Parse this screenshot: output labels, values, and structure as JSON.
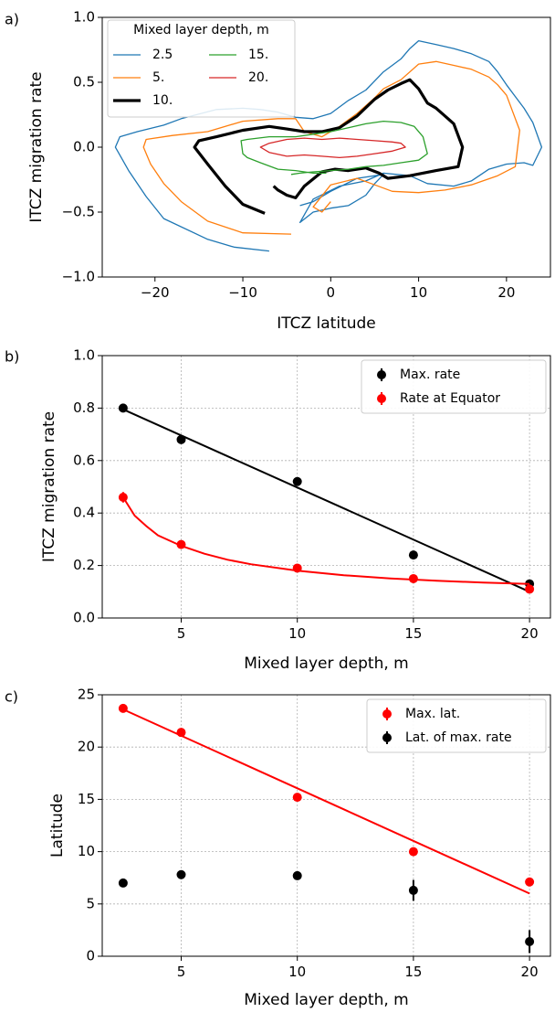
{
  "chart_data": [
    {
      "panel": "a)",
      "type": "line",
      "xlabel": "ITCZ latitude",
      "ylabel": "ITCZ migration rate",
      "xlim": [
        -26,
        25
      ],
      "ylim": [
        -1.0,
        1.0
      ],
      "xticks": [
        -20,
        -10,
        0,
        10,
        20
      ],
      "xtick_labels": [
        "−20",
        "−10",
        "0",
        "10",
        "20"
      ],
      "yticks": [
        -1.0,
        -0.5,
        0.0,
        0.5,
        1.0
      ],
      "ytick_labels": [
        "−1.0",
        "−0.5",
        "0.0",
        "0.5",
        "1.0"
      ],
      "legend": {
        "title": "Mixed layer depth, m",
        "position": "top-left",
        "ncol": 2
      },
      "series": [
        {
          "name": "2.5",
          "color": "#1f77b4",
          "width": 1.3,
          "x": [
            -7,
            -11,
            -14,
            -19,
            -21,
            -23,
            -24.5,
            -24,
            -22,
            -19,
            -17,
            -13,
            -10,
            -8,
            -6,
            -4,
            -2,
            0,
            2,
            4,
            6,
            8,
            9,
            10,
            12,
            14,
            16,
            18,
            19,
            20,
            21,
            22,
            23,
            24,
            23,
            22,
            20,
            18,
            16,
            14,
            11,
            9,
            6,
            4,
            1,
            -2,
            -3.5,
            -2,
            0,
            2,
            4,
            5,
            6,
            3,
            0,
            -2,
            -3.5
          ],
          "y": [
            -0.8,
            -0.77,
            -0.71,
            -0.55,
            -0.38,
            -0.18,
            0.0,
            0.08,
            0.12,
            0.17,
            0.22,
            0.29,
            0.3,
            0.29,
            0.27,
            0.23,
            0.22,
            0.26,
            0.36,
            0.44,
            0.58,
            0.68,
            0.76,
            0.82,
            0.79,
            0.76,
            0.72,
            0.66,
            0.58,
            0.48,
            0.39,
            0.3,
            0.19,
            0.0,
            -0.14,
            -0.12,
            -0.13,
            -0.17,
            -0.26,
            -0.3,
            -0.28,
            -0.22,
            -0.2,
            -0.26,
            -0.3,
            -0.4,
            -0.58,
            -0.5,
            -0.47,
            -0.45,
            -0.37,
            -0.28,
            -0.21,
            -0.24,
            -0.34,
            -0.42,
            -0.45
          ]
        },
        {
          "name": "5.",
          "color": "#ff7f0e",
          "width": 1.3,
          "x": [
            -4.5,
            -10,
            -14,
            -17,
            -19,
            -20.5,
            -21.3,
            -21,
            -18,
            -14,
            -10,
            -6,
            -4,
            -3,
            -1,
            1,
            3,
            5,
            6,
            8,
            10,
            12,
            14,
            16,
            18,
            19,
            20,
            21.5,
            21,
            19,
            16,
            13,
            10,
            7,
            5,
            3,
            0,
            -2,
            -1,
            0
          ],
          "y": [
            -0.67,
            -0.66,
            -0.57,
            -0.42,
            -0.28,
            -0.13,
            0.0,
            0.06,
            0.09,
            0.12,
            0.2,
            0.22,
            0.22,
            0.12,
            0.08,
            0.16,
            0.26,
            0.38,
            0.45,
            0.52,
            0.64,
            0.66,
            0.63,
            0.6,
            0.54,
            0.48,
            0.4,
            0.13,
            -0.15,
            -0.22,
            -0.29,
            -0.33,
            -0.35,
            -0.34,
            -0.29,
            -0.24,
            -0.29,
            -0.46,
            -0.5,
            -0.42
          ]
        },
        {
          "name": "10.",
          "color": "#000000",
          "width": 3.2,
          "x": [
            -7.5,
            -10,
            -12,
            -14,
            -15.5,
            -15,
            -13,
            -10,
            -7,
            -5,
            -3,
            -1,
            1,
            3,
            5,
            6.5,
            8,
            9,
            10,
            11,
            12,
            13,
            14,
            15,
            14.5,
            12,
            9,
            6.5,
            5.5,
            4,
            2,
            0.5,
            -1,
            -3,
            -4,
            -5,
            -6,
            -6.5
          ],
          "y": [
            -0.51,
            -0.44,
            -0.3,
            -0.13,
            0.0,
            0.05,
            0.08,
            0.13,
            0.16,
            0.14,
            0.12,
            0.12,
            0.15,
            0.24,
            0.37,
            0.44,
            0.49,
            0.52,
            0.45,
            0.34,
            0.3,
            0.24,
            0.18,
            0.0,
            -0.15,
            -0.18,
            -0.22,
            -0.24,
            -0.2,
            -0.16,
            -0.18,
            -0.17,
            -0.19,
            -0.3,
            -0.39,
            -0.37,
            -0.33,
            -0.3
          ]
        },
        {
          "name": "15.",
          "color": "#2ca02c",
          "width": 1.3,
          "x": [
            -0.5,
            -2,
            -4,
            -6,
            -8,
            -9.5,
            -10,
            -10.2,
            -9.5,
            -7,
            -4,
            -2,
            0,
            2,
            4,
            6,
            8,
            9.5,
            10.5,
            11,
            10,
            8,
            6,
            4,
            2,
            0,
            -2,
            -3.5,
            -4.5
          ],
          "y": [
            -0.2,
            -0.2,
            -0.18,
            -0.17,
            -0.12,
            -0.08,
            -0.05,
            0.05,
            0.06,
            0.08,
            0.08,
            0.1,
            0.12,
            0.15,
            0.18,
            0.2,
            0.19,
            0.16,
            0.08,
            -0.05,
            -0.1,
            -0.12,
            -0.14,
            -0.15,
            -0.17,
            -0.18,
            -0.19,
            -0.2,
            -0.21
          ]
        },
        {
          "name": "20.",
          "color": "#d62728",
          "width": 1.3,
          "x": [
            -5,
            -7,
            -8,
            -7,
            -5,
            -3,
            -1,
            1,
            3,
            5,
            7,
            8,
            8.5,
            7,
            5,
            3,
            1,
            -1,
            -3,
            -5
          ],
          "y": [
            -0.07,
            -0.04,
            0.0,
            0.03,
            0.06,
            0.07,
            0.06,
            0.07,
            0.06,
            0.05,
            0.04,
            0.03,
            0.0,
            -0.03,
            -0.05,
            -0.07,
            -0.08,
            -0.07,
            -0.06,
            -0.07
          ]
        }
      ]
    },
    {
      "panel": "b)",
      "type": "scatter",
      "xlabel": "Mixed layer depth, m",
      "ylabel": "ITCZ migration rate",
      "xlim": [
        1.6,
        20.9
      ],
      "ylim": [
        0.0,
        1.0
      ],
      "xticks": [
        5,
        10,
        15,
        20
      ],
      "xtick_labels": [
        "5",
        "10",
        "15",
        "20"
      ],
      "yticks": [
        0.0,
        0.2,
        0.4,
        0.6,
        0.8,
        1.0
      ],
      "ytick_labels": [
        "0.0",
        "0.2",
        "0.4",
        "0.6",
        "0.8",
        "1.0"
      ],
      "grid": true,
      "legend": {
        "position": "top-right"
      },
      "series": [
        {
          "name": "Max. rate",
          "color": "#000000",
          "x": [
            2.5,
            5,
            10,
            15,
            20
          ],
          "y": [
            0.8,
            0.68,
            0.52,
            0.24,
            0.13
          ],
          "err": [
            0.01,
            0.01,
            0.01,
            0.01,
            0.01
          ],
          "fit": {
            "kind": "linear",
            "x": [
              2.5,
              20
            ],
            "y": [
              0.795,
              0.1
            ]
          }
        },
        {
          "name": "Rate at Equator",
          "color": "#ff0000",
          "x": [
            2.5,
            5,
            10,
            15,
            20
          ],
          "y": [
            0.46,
            0.28,
            0.19,
            0.15,
            0.11
          ],
          "err": [
            0.02,
            0.01,
            0.01,
            0.01,
            0.01
          ],
          "fit": {
            "kind": "curve",
            "x": [
              2.5,
              3,
              3.5,
              4,
              5,
              6,
              7,
              8,
              10,
              12,
              14,
              16,
              18,
              20
            ],
            "y": [
              0.46,
              0.39,
              0.35,
              0.315,
              0.275,
              0.245,
              0.222,
              0.205,
              0.18,
              0.163,
              0.151,
              0.142,
              0.135,
              0.13
            ]
          }
        }
      ]
    },
    {
      "panel": "c)",
      "type": "scatter",
      "xlabel": "Mixed layer depth, m",
      "ylabel": "Latitude",
      "xlim": [
        1.6,
        20.9
      ],
      "ylim": [
        0,
        25
      ],
      "xticks": [
        5,
        10,
        15,
        20
      ],
      "xtick_labels": [
        "5",
        "10",
        "15",
        "20"
      ],
      "yticks": [
        0,
        5,
        10,
        15,
        20,
        25
      ],
      "ytick_labels": [
        "0",
        "5",
        "10",
        "15",
        "20",
        "25"
      ],
      "grid": true,
      "legend": {
        "position": "top-right"
      },
      "series": [
        {
          "name": "Max. lat.",
          "color": "#ff0000",
          "x": [
            2.5,
            5,
            10,
            15,
            20
          ],
          "y": [
            23.7,
            21.4,
            15.2,
            10.0,
            7.1
          ],
          "err": [
            0.3,
            0.3,
            0.3,
            0.3,
            0.3
          ],
          "fit": {
            "kind": "linear",
            "x": [
              2.5,
              20
            ],
            "y": [
              23.6,
              6.0
            ]
          }
        },
        {
          "name": "Lat. of max. rate",
          "color": "#000000",
          "x": [
            2.5,
            5,
            10,
            15,
            20
          ],
          "y": [
            7.0,
            7.8,
            7.7,
            6.3,
            1.4
          ],
          "err": [
            0.3,
            0.3,
            0.4,
            1.0,
            1.1
          ]
        }
      ]
    }
  ]
}
